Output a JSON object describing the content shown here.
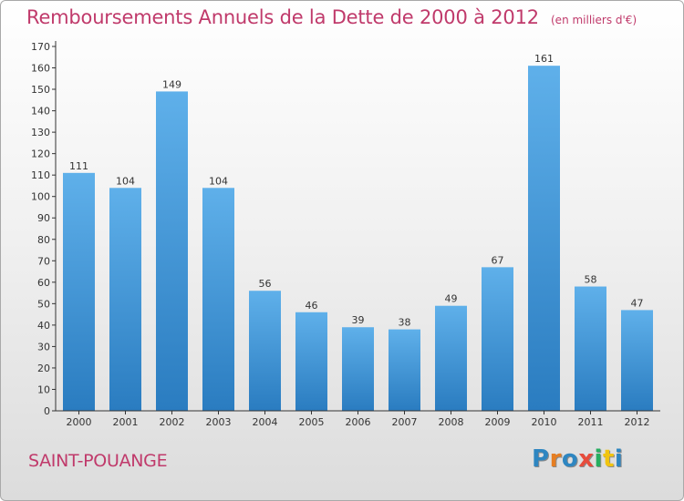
{
  "header": {
    "title": "Remboursements Annuels de la Dette de 2000 à 2012",
    "subtitle": "(en milliers d'€)"
  },
  "footer": {
    "commune": "SAINT-POUANGE",
    "logo_text": "Proxiti",
    "logo_colors": [
      "#2e86c1",
      "#e67e22",
      "#2e86c1",
      "#e74c3c",
      "#27ae60",
      "#f1c40f",
      "#2e86c1"
    ]
  },
  "colors": {
    "bar_light": "#5fb0ea",
    "bar_dark": "#2a7cc0",
    "title": "#c03a6b",
    "axis": "#333333"
  },
  "chart_data": {
    "type": "bar",
    "title": "Remboursements Annuels de la Dette de 2000 à 2012",
    "xlabel": "",
    "ylabel": "",
    "categories": [
      "2000",
      "2001",
      "2002",
      "2003",
      "2004",
      "2005",
      "2006",
      "2007",
      "2008",
      "2009",
      "2010",
      "2011",
      "2012"
    ],
    "values": [
      111,
      104,
      149,
      104,
      56,
      46,
      39,
      38,
      49,
      67,
      161,
      58,
      47
    ],
    "ylim": [
      0,
      170
    ],
    "ytick_step": 10,
    "grid": false,
    "legend": "none"
  }
}
